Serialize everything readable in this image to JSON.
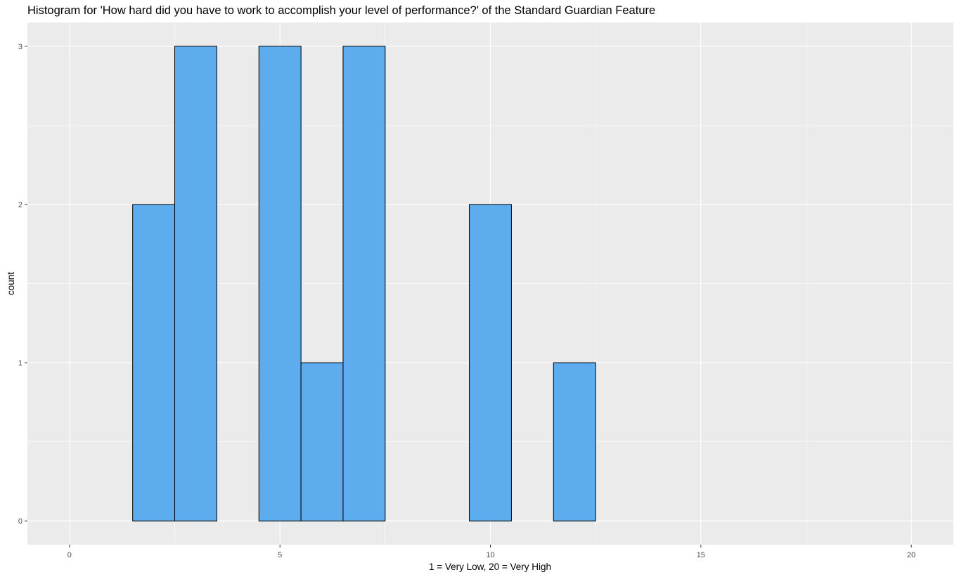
{
  "chart_data": {
    "type": "bar",
    "subtype": "histogram",
    "title": "Histogram for 'How hard did you have to work to accomplish your level of performance?' of the Standard Guardian Feature",
    "xlabel": "1 = Very Low, 20 = Very High",
    "ylabel": "count",
    "xlim": [
      -1,
      21
    ],
    "ylim": [
      -0.15,
      3.15
    ],
    "x_ticks": [
      0,
      5,
      10,
      15,
      20
    ],
    "y_ticks": [
      0,
      1,
      2,
      3
    ],
    "bin_width": 1,
    "bins": [
      {
        "x": 2,
        "count": 2
      },
      {
        "x": 3,
        "count": 3
      },
      {
        "x": 4,
        "count": 0
      },
      {
        "x": 5,
        "count": 3
      },
      {
        "x": 6,
        "count": 1
      },
      {
        "x": 7,
        "count": 3
      },
      {
        "x": 8,
        "count": 0
      },
      {
        "x": 9,
        "count": 0
      },
      {
        "x": 10,
        "count": 2
      },
      {
        "x": 11,
        "count": 0
      },
      {
        "x": 12,
        "count": 1
      }
    ],
    "grid": true,
    "legend": "none",
    "colors": {
      "bar_fill": "#5DADEE",
      "bar_outline": "#000000",
      "panel_background": "#EBEBEB",
      "grid": "#FFFFFF"
    }
  }
}
